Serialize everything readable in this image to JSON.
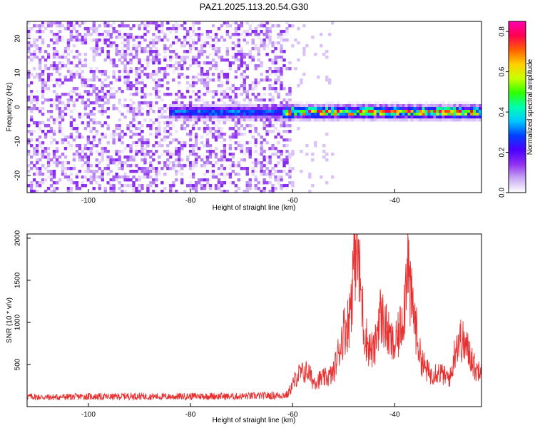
{
  "title": "PAZ1.2025.113.20.54.G30",
  "chart_data": [
    {
      "type": "heatmap",
      "title": "PAZ1.2025.113.20.54.G30",
      "xlabel": "Height of straight line (km)",
      "ylabel": "Frequency (Hz)",
      "xlim": [
        -112,
        -23
      ],
      "ylim": [
        -25,
        25
      ],
      "xticks": [
        "-100",
        "-80",
        "-60",
        "-40"
      ],
      "yticks": [
        "20",
        "10",
        "0",
        "-10",
        "-20"
      ],
      "colorbar": {
        "label": "Normalized spectral amplitude",
        "range": [
          0.0,
          0.85
        ],
        "ticks": [
          "0.0",
          "0.2",
          "0.4",
          "0.6",
          "0.8"
        ],
        "colors": [
          "#ffffff",
          "#c9a8f5",
          "#8f2ff0",
          "#4b00ff",
          "#0040ff",
          "#00c8ff",
          "#00ffb0",
          "#30ff00",
          "#c8ff00",
          "#ffd000",
          "#ff6000",
          "#ff0050",
          "#ff00b0"
        ]
      },
      "noise_region_km": [
        -112,
        -60
      ],
      "signal_band": {
        "frequency_hz": -1.5,
        "start_km": -84,
        "end_km": -23,
        "peak_amplitude": 0.85
      }
    },
    {
      "type": "line",
      "xlabel": "Height of straight line (km)",
      "ylabel": "SNR (10 * v/v)",
      "xlim": [
        -112,
        -23
      ],
      "ylim": [
        0,
        2050
      ],
      "xticks": [
        "-100",
        "-80",
        "-60",
        "-40"
      ],
      "yticks": [
        "500",
        "1000",
        "1500",
        "2000"
      ],
      "color": "#e83030",
      "series": [
        {
          "x": [
            -112,
            -108,
            -104,
            -100,
            -96,
            -92,
            -88,
            -84,
            -80,
            -76,
            -72,
            -68,
            -64,
            -61,
            -59,
            -57,
            -56,
            -55,
            -53,
            -52,
            -50,
            -49,
            -48,
            -47.5,
            -47,
            -46.5,
            -46,
            -45,
            -44,
            -43,
            -42,
            -41,
            -40,
            -39,
            -38,
            -37.5,
            -37,
            -36.5,
            -36,
            -35,
            -34,
            -33,
            -32,
            -31,
            -30,
            -29,
            -28,
            -27,
            -26,
            -25,
            -24,
            -23
          ],
          "y": [
            120,
            110,
            115,
            120,
            115,
            125,
            120,
            118,
            122,
            125,
            120,
            125,
            130,
            140,
            380,
            420,
            300,
            320,
            350,
            400,
            900,
            1000,
            1700,
            2050,
            1600,
            1300,
            900,
            700,
            650,
            1100,
            1000,
            800,
            700,
            900,
            1250,
            1950,
            1300,
            1200,
            1000,
            600,
            450,
            380,
            420,
            400,
            350,
            350,
            750,
            800,
            700,
            600,
            400,
            550
          ]
        }
      ]
    }
  ]
}
